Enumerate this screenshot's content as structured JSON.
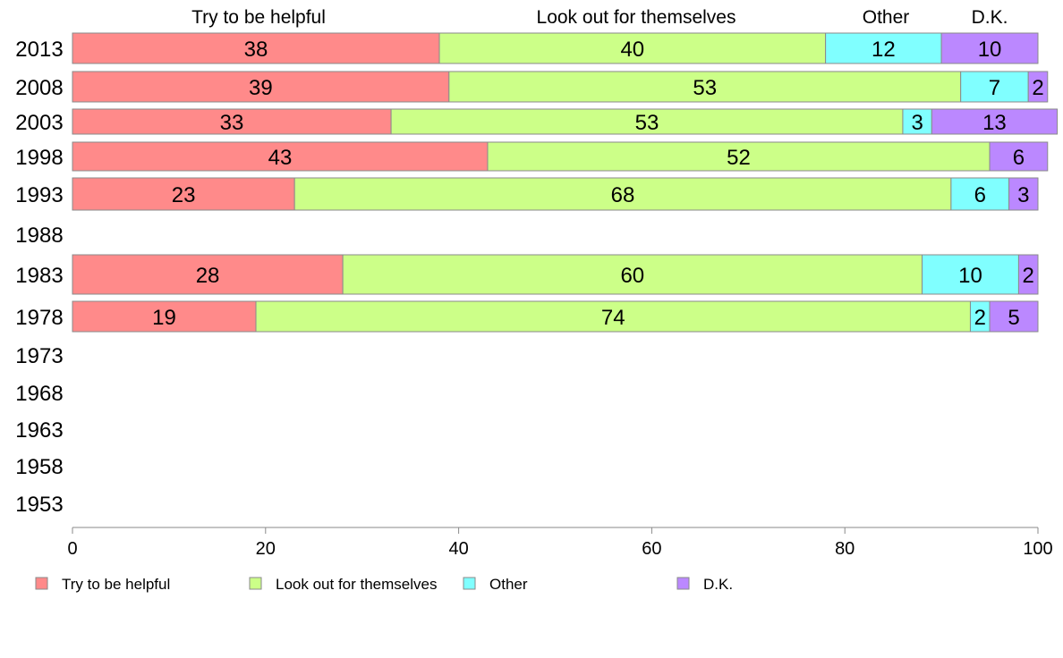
{
  "chart_data": {
    "type": "bar",
    "orientation": "horizontal",
    "stacked": true,
    "title": "",
    "xlabel": "",
    "ylabel": "",
    "xlim": [
      0,
      100
    ],
    "x_ticks": [
      0,
      20,
      40,
      60,
      80,
      100
    ],
    "grid": false,
    "legend_position": "bottom",
    "categories": [
      "2013",
      "2008",
      "2003",
      "1998",
      "1993",
      "1988",
      "1983",
      "1978",
      "1973",
      "1968",
      "1963",
      "1958",
      "1953"
    ],
    "series": [
      {
        "name": "Try to be helpful",
        "color": "#ff8a8a",
        "values": [
          38,
          39,
          33,
          43,
          23,
          null,
          28,
          19,
          null,
          null,
          null,
          null,
          null
        ]
      },
      {
        "name": "Look out for themselves",
        "color": "#ccff88",
        "values": [
          40,
          53,
          53,
          52,
          68,
          null,
          60,
          74,
          null,
          null,
          null,
          null,
          null
        ]
      },
      {
        "name": "Other",
        "color": "#80ffff",
        "values": [
          12,
          7,
          3,
          null,
          6,
          null,
          10,
          2,
          null,
          null,
          null,
          null,
          null
        ]
      },
      {
        "name": "D.K.",
        "color": "#bb88ff",
        "values": [
          10,
          2,
          13,
          6,
          3,
          null,
          2,
          5,
          null,
          null,
          null,
          null,
          null
        ]
      }
    ],
    "column_headers": [
      "Try to be helpful",
      "Look out for themselves",
      "Other",
      "D.K."
    ],
    "bar_border_color": "#8a8a8a"
  }
}
